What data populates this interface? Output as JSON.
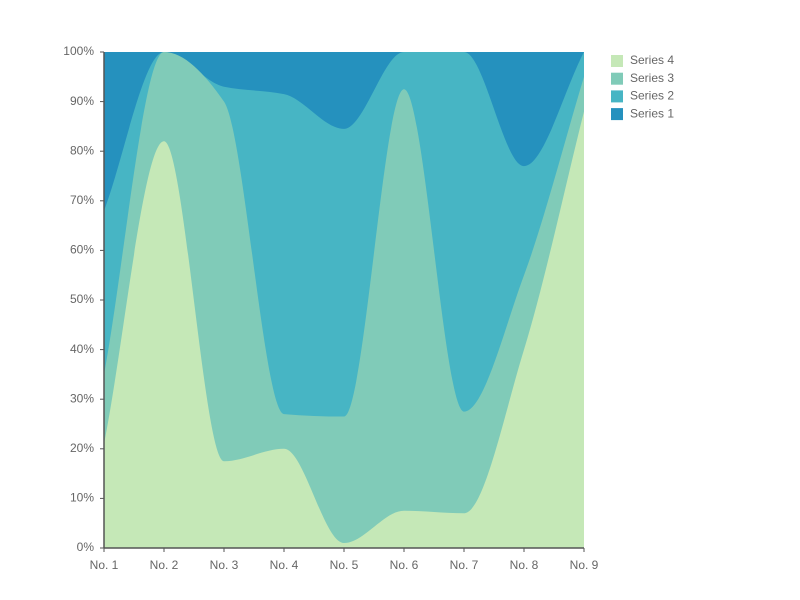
{
  "chart_data": {
    "type": "stacked-area-percent",
    "categories": [
      "No. 1",
      "No. 2",
      "No. 3",
      "No. 4",
      "No. 5",
      "No. 6",
      "No. 7",
      "No. 8",
      "No. 9"
    ],
    "series": [
      {
        "name": "Series 4",
        "color": "#c5e8b7",
        "values": [
          21,
          82,
          17.5,
          20,
          1,
          7.5,
          7,
          40,
          88
        ]
      },
      {
        "name": "Series 3",
        "color": "#80cbb8",
        "values": [
          14,
          18,
          72.5,
          7,
          25.5,
          85,
          20.5,
          15,
          7
        ]
      },
      {
        "name": "Series 2",
        "color": "#47b5c4",
        "values": [
          33,
          0,
          3,
          64.5,
          58,
          7.5,
          72.5,
          22,
          5
        ]
      },
      {
        "name": "Series 1",
        "color": "#2591be",
        "values": [
          32,
          0,
          7,
          8.5,
          15.5,
          0,
          0,
          23,
          0
        ]
      }
    ],
    "ylim": [
      0,
      100
    ],
    "yticks": [
      {
        "value": 0,
        "label": "0%"
      },
      {
        "value": 10,
        "label": "10%"
      },
      {
        "value": 20,
        "label": "20%"
      },
      {
        "value": 30,
        "label": "30%"
      },
      {
        "value": 40,
        "label": "40%"
      },
      {
        "value": 50,
        "label": "50%"
      },
      {
        "value": 60,
        "label": "60%"
      },
      {
        "value": 70,
        "label": "70%"
      },
      {
        "value": 80,
        "label": "80%"
      },
      {
        "value": 90,
        "label": "90%"
      },
      {
        "value": 100,
        "label": "100%"
      }
    ],
    "legend": "right"
  }
}
